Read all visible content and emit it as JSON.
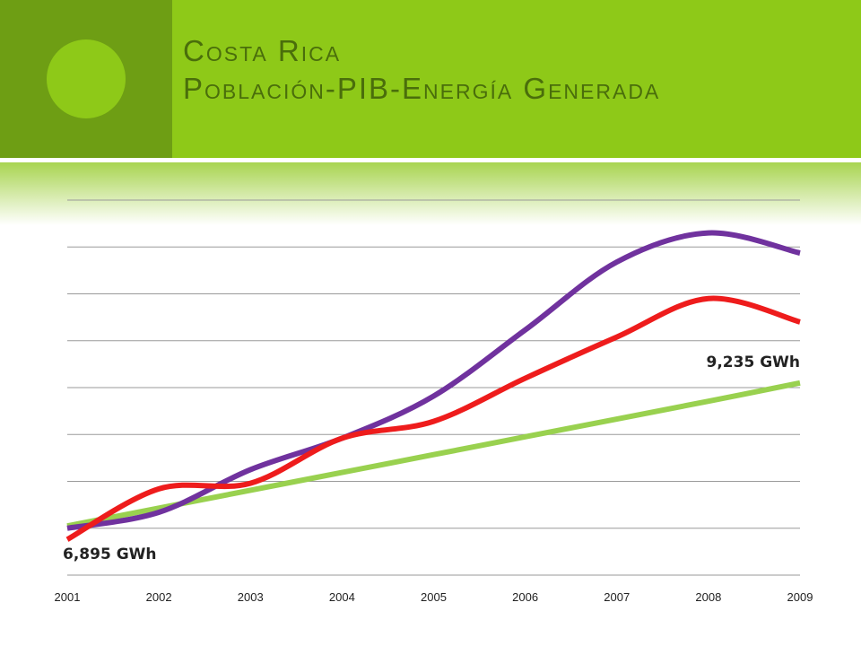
{
  "slide": {
    "title_line1": "Costa Rica",
    "title_line2": "Población-PIB-Energía Generada"
  },
  "colors": {
    "header_bg": "#8ec918",
    "header_accent": "#6e9e14",
    "title_text": "#4a6e0b",
    "gridline": "#9a9a9a"
  },
  "chart_data": {
    "type": "line",
    "title": "",
    "xlabel": "",
    "ylabel": "",
    "x": [
      2001,
      2002,
      2003,
      2004,
      2005,
      2006,
      2007,
      2008,
      2009
    ],
    "x_tick_labels": [
      "2001",
      "2002",
      "2003",
      "2004",
      "2005",
      "2006",
      "2007",
      "2008",
      "2009"
    ],
    "xlim": [
      2001,
      2009
    ],
    "ylim": [
      0,
      8
    ],
    "y_tick_labels_shown": false,
    "grid": true,
    "legend": "none",
    "series": [
      {
        "color": "#70329e",
        "values": [
          1.0,
          1.34,
          2.25,
          2.92,
          3.82,
          5.23,
          6.68,
          7.3,
          6.87
        ]
      },
      {
        "color": "#ee1c1c",
        "values": [
          0.76,
          1.84,
          1.96,
          2.92,
          3.28,
          4.2,
          5.08,
          5.9,
          5.4
        ]
      },
      {
        "color": "#99d14f",
        "values": [
          1.05,
          1.43,
          1.81,
          2.19,
          2.57,
          2.95,
          3.33,
          3.71,
          4.1
        ]
      }
    ],
    "annotations": [
      {
        "text": "6,895 GWh",
        "x": 2001,
        "series": 1
      },
      {
        "text": "9,235 GWh",
        "x": 2009,
        "series": 1
      }
    ]
  }
}
